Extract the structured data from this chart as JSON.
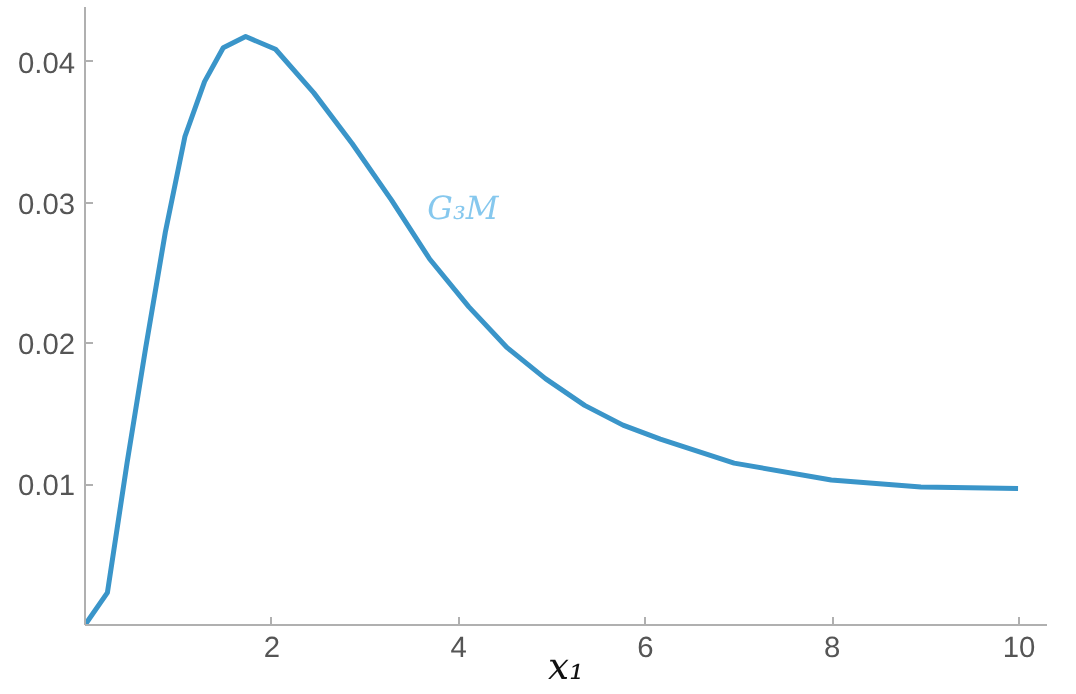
{
  "chart_data": {
    "type": "line",
    "xlabel": "x₁",
    "x": [
      0,
      0.24,
      0.45,
      0.65,
      0.86,
      1.07,
      1.28,
      1.48,
      1.72,
      2.04,
      2.45,
      2.86,
      3.28,
      3.69,
      4.11,
      4.52,
      4.93,
      5.35,
      5.76,
      6.16,
      6.95,
      7.99,
      8.95,
      9.99
    ],
    "series": [
      {
        "name": "G₃M",
        "color": "#3a95c9",
        "values": [
          0,
          0.0023,
          0.0115,
          0.0197,
          0.0279,
          0.0347,
          0.0386,
          0.041,
          0.0418,
          0.0409,
          0.0378,
          0.0342,
          0.0302,
          0.026,
          0.0226,
          0.0197,
          0.0175,
          0.0156,
          0.0142,
          0.0132,
          0.0115,
          0.0103,
          0.0098,
          0.0097
        ]
      }
    ],
    "xlim": [
      0,
      10.3
    ],
    "ylim": [
      0,
      0.0439
    ],
    "xticks": [
      2,
      4,
      6,
      8,
      10
    ],
    "yticks": [
      0.01,
      0.02,
      0.03,
      0.04
    ],
    "grid": false,
    "line_style": "solid",
    "marker": "none"
  }
}
